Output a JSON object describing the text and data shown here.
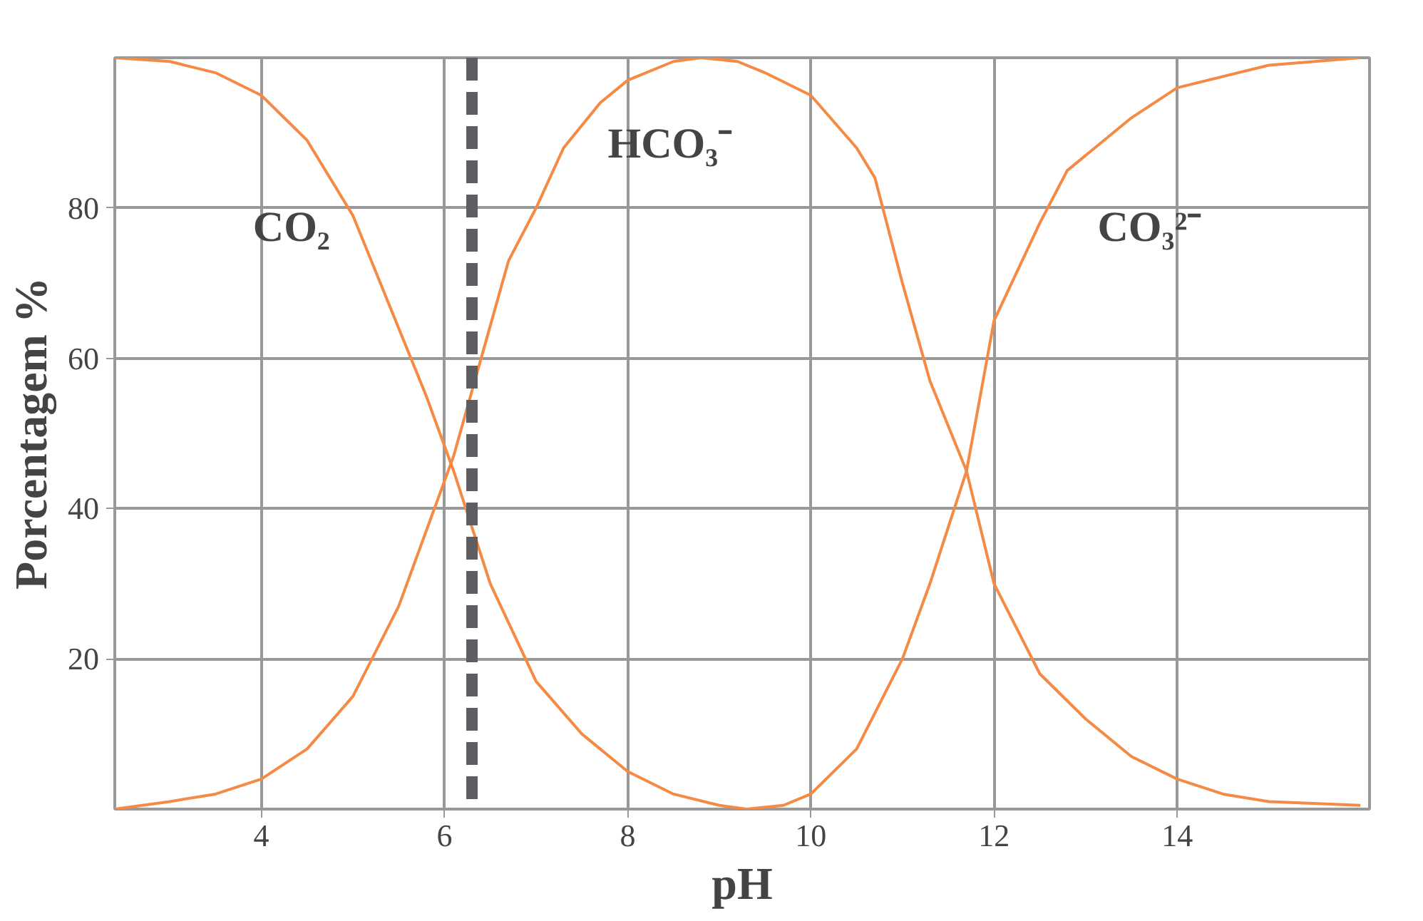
{
  "chart_data": {
    "type": "line",
    "xlabel": "pH",
    "ylabel": "Porcentagem %",
    "xlim": [
      2.4,
      16.1
    ],
    "xticks": [
      4,
      6,
      8,
      10,
      12,
      14
    ],
    "ylim": [
      0,
      100
    ],
    "yticks": [
      20,
      40,
      60,
      80
    ],
    "grid": true,
    "line_style": "solid",
    "series": [
      {
        "color": "#f58a45",
        "x": [
          2.4,
          3,
          3.5,
          4,
          4.5,
          5,
          5.5,
          5.8,
          6.1,
          6.5,
          7,
          7.5,
          8,
          8.5,
          9,
          9.3,
          9.7,
          10,
          10.5,
          11,
          11.3,
          11.7,
          12,
          12.5,
          12.8,
          13.5,
          14,
          15,
          16
        ],
        "values": [
          100,
          99.5,
          98,
          95,
          89,
          79,
          64,
          55,
          45,
          30,
          17,
          10,
          5,
          2,
          0.5,
          0,
          0.5,
          2,
          8,
          20,
          30,
          45,
          65,
          78,
          85,
          92,
          96,
          99,
          100
        ]
      },
      {
        "color": "#f58a45",
        "x": [
          2.4,
          3,
          3.5,
          4,
          4.5,
          5,
          5.5,
          5.8,
          6.1,
          6.4,
          6.7,
          7,
          7.3,
          7.7,
          8,
          8.5,
          8.8,
          9.2,
          9.5,
          10,
          10.5,
          10.7,
          11,
          11.3,
          11.7,
          12,
          12.5,
          13,
          13.5,
          14,
          14.5,
          15,
          16
        ],
        "values": [
          0,
          1,
          2,
          4,
          8,
          15,
          27,
          37,
          47,
          60,
          73,
          80,
          88,
          94,
          97,
          99.5,
          100,
          99.5,
          98,
          95,
          88,
          84,
          70,
          57,
          45,
          30,
          18,
          12,
          7,
          4,
          2,
          1,
          0.5
        ]
      }
    ],
    "ref_lines": [
      {
        "axis": "x",
        "value": 6.3,
        "color": "#5e5e62",
        "line_style": "dashed"
      }
    ],
    "annotations": [
      "CO₂",
      "HCO₃⁻",
      "CO₃²⁻"
    ]
  }
}
